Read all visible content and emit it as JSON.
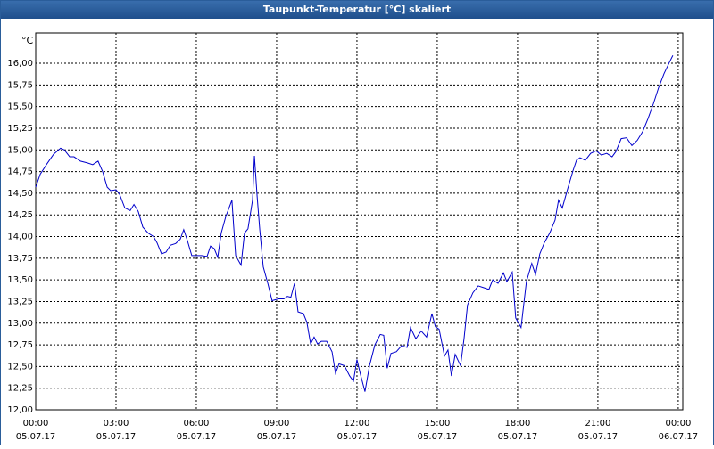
{
  "chart_data": {
    "type": "line",
    "title": "Taupunkt-Temperatur [°C] skaliert",
    "y_unit": "°C",
    "xlim": [
      0,
      24.17
    ],
    "ylim": [
      12,
      16.35
    ],
    "grid": true,
    "xticks": [
      {
        "value": 0,
        "label": "00:00",
        "date": "05.07.17"
      },
      {
        "value": 3,
        "label": "03:00",
        "date": "05.07.17"
      },
      {
        "value": 6,
        "label": "06:00",
        "date": "05.07.17"
      },
      {
        "value": 9,
        "label": "09:00",
        "date": "05.07.17"
      },
      {
        "value": 12,
        "label": "12:00",
        "date": "05.07.17"
      },
      {
        "value": 15,
        "label": "15:00",
        "date": "05.07.17"
      },
      {
        "value": 18,
        "label": "18:00",
        "date": "05.07.17"
      },
      {
        "value": 21,
        "label": "21:00",
        "date": "05.07.17"
      },
      {
        "value": 24,
        "label": "00:00",
        "date": "06.07.17"
      }
    ],
    "yticks": [
      {
        "value": 12,
        "label": "12,00"
      },
      {
        "value": 12.25,
        "label": "12,25"
      },
      {
        "value": 12.5,
        "label": "12,50"
      },
      {
        "value": 12.75,
        "label": "12,75"
      },
      {
        "value": 13,
        "label": "13,00"
      },
      {
        "value": 13.25,
        "label": "13,25"
      },
      {
        "value": 13.5,
        "label": "13,50"
      },
      {
        "value": 13.75,
        "label": "13,75"
      },
      {
        "value": 14,
        "label": "14,00"
      },
      {
        "value": 14.25,
        "label": "14,25"
      },
      {
        "value": 14.5,
        "label": "14,50"
      },
      {
        "value": 14.75,
        "label": "14,75"
      },
      {
        "value": 15,
        "label": "15,00"
      },
      {
        "value": 15.25,
        "label": "15,25"
      },
      {
        "value": 15.5,
        "label": "15,50"
      },
      {
        "value": 15.75,
        "label": "15,75"
      },
      {
        "value": 16,
        "label": "16,00"
      }
    ],
    "series": [
      {
        "color": "#0000cc",
        "x": [
          0,
          0.17,
          0.4,
          0.67,
          0.93,
          1.07,
          1.27,
          1.43,
          1.67,
          1.93,
          2.13,
          2.33,
          2.5,
          2.67,
          2.8,
          3,
          3.13,
          3.33,
          3.53,
          3.67,
          3.83,
          4,
          4.2,
          4.4,
          4.53,
          4.7,
          4.87,
          5.03,
          5.23,
          5.4,
          5.53,
          5.67,
          5.83,
          6,
          6.2,
          6.4,
          6.53,
          6.67,
          6.8,
          6.93,
          7.1,
          7.33,
          7.47,
          7.67,
          7.8,
          7.93,
          8.1,
          8.17,
          8.27,
          8.37,
          8.5,
          8.67,
          8.83,
          9.07,
          9.27,
          9.4,
          9.53,
          9.67,
          9.8,
          10,
          10.13,
          10.27,
          10.4,
          10.53,
          10.67,
          10.87,
          11.07,
          11.2,
          11.33,
          11.53,
          11.73,
          11.87,
          12,
          12.13,
          12.3,
          12.47,
          12.67,
          12.87,
          13,
          13.13,
          13.27,
          13.47,
          13.67,
          13.87,
          14,
          14.2,
          14.4,
          14.6,
          14.8,
          14.93,
          15.07,
          15.27,
          15.4,
          15.53,
          15.67,
          15.87,
          16,
          16.13,
          16.33,
          16.53,
          16.73,
          16.93,
          17.07,
          17.27,
          17.47,
          17.6,
          17.8,
          17.93,
          18.13,
          18.33,
          18.53,
          18.67,
          18.83,
          19,
          19.2,
          19.4,
          19.53,
          19.67,
          19.87,
          20.07,
          20.2,
          20.33,
          20.53,
          20.73,
          20.93,
          21.13,
          21.33,
          21.53,
          21.67,
          21.87,
          22.07,
          22.27,
          22.47,
          22.67,
          22.87,
          23.07,
          23.27,
          23.47,
          23.67,
          23.8
        ],
        "values": [
          14.57,
          14.72,
          14.83,
          14.95,
          15.02,
          15.0,
          14.92,
          14.92,
          14.87,
          14.85,
          14.83,
          14.87,
          14.75,
          14.57,
          14.53,
          14.54,
          14.49,
          14.33,
          14.3,
          14.37,
          14.29,
          14.11,
          14.04,
          14.0,
          13.93,
          13.8,
          13.82,
          13.9,
          13.92,
          13.97,
          14.08,
          13.95,
          13.78,
          13.78,
          13.78,
          13.77,
          13.89,
          13.86,
          13.76,
          14.04,
          14.23,
          14.42,
          13.78,
          13.67,
          14.04,
          14.09,
          14.42,
          14.93,
          14.47,
          14.08,
          13.65,
          13.46,
          13.26,
          13.28,
          13.28,
          13.31,
          13.3,
          13.46,
          13.13,
          13.11,
          13.01,
          12.76,
          12.84,
          12.76,
          12.79,
          12.79,
          12.67,
          12.42,
          12.53,
          12.51,
          12.39,
          12.33,
          12.58,
          12.41,
          12.21,
          12.51,
          12.75,
          12.87,
          12.86,
          12.48,
          12.65,
          12.67,
          12.74,
          12.72,
          12.95,
          12.82,
          12.91,
          12.84,
          13.11,
          12.96,
          12.93,
          12.62,
          12.69,
          12.39,
          12.64,
          12.51,
          12.82,
          13.21,
          13.35,
          13.43,
          13.41,
          13.39,
          13.5,
          13.46,
          13.58,
          13.48,
          13.59,
          13.06,
          12.95,
          13.48,
          13.69,
          13.56,
          13.8,
          13.93,
          14.04,
          14.19,
          14.42,
          14.33,
          14.55,
          14.76,
          14.88,
          14.91,
          14.88,
          14.96,
          14.99,
          14.94,
          14.96,
          14.92,
          14.98,
          15.13,
          15.14,
          15.05,
          15.11,
          15.21,
          15.36,
          15.53,
          15.72,
          15.88,
          16.01,
          16.09
        ]
      }
    ]
  }
}
